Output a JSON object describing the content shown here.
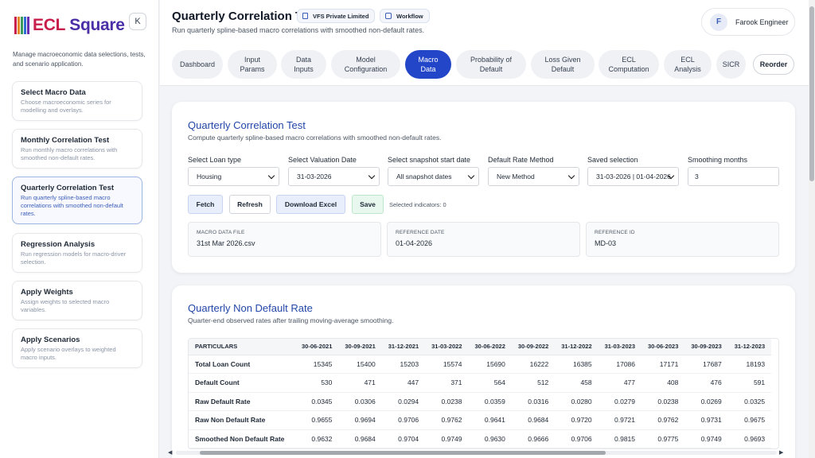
{
  "brand": {
    "ecl": "ECL",
    "square": "Square"
  },
  "sidebar": {
    "collapse_label": "K",
    "description": "Manage macroeconomic data selections, tests, and scenario application.",
    "items": [
      {
        "title": "Select Macro Data",
        "desc": "Choose macroeconomic series for modelling and overlays."
      },
      {
        "title": "Monthly Correlation Test",
        "desc": "Run monthly macro correlations with smoothed non-default rates."
      },
      {
        "title": "Quarterly Correlation Test",
        "desc": "Run quarterly spline-based macro correlations with smoothed non-default rates."
      },
      {
        "title": "Regression Analysis",
        "desc": "Run regression models for macro-driver selection."
      },
      {
        "title": "Apply Weights",
        "desc": "Assign weights to selected macro variables."
      },
      {
        "title": "Apply Scenarios",
        "desc": "Apply scenario overlays to weighted macro inputs."
      }
    ]
  },
  "header": {
    "title": "Quarterly Correlation Test",
    "subtitle": "Run quarterly spline-based macro correlations with smoothed non-default rates.",
    "chips": [
      "VFS Private Limited",
      "Workflow"
    ],
    "user": {
      "initial": "F",
      "name": "Farook Engineer"
    }
  },
  "tabs": [
    {
      "label": "Dashboard"
    },
    {
      "label": "Input Params"
    },
    {
      "label": "Data Inputs"
    },
    {
      "label": "Model Configuration"
    },
    {
      "label": "Macro Data"
    },
    {
      "label": "Probability of Default"
    },
    {
      "label": "Loss Given Default"
    },
    {
      "label": "ECL Computation"
    },
    {
      "label": "ECL Analysis"
    },
    {
      "label": "SICR"
    },
    {
      "label": "Reorder"
    }
  ],
  "correlation_card": {
    "title": "Quarterly Correlation Test",
    "subtitle": "Compute quarterly spline-based macro correlations with smoothed non-default rates.",
    "fields": {
      "loan_type": {
        "label": "Select Loan type",
        "value": "Housing"
      },
      "valuation_date": {
        "label": "Select Valuation Date",
        "value": "31-03-2026"
      },
      "snapshot_start": {
        "label": "Select snapshot start date",
        "value": "All snapshot dates"
      },
      "default_rate": {
        "label": "Default Rate Method",
        "value": "New Method"
      },
      "saved_selection": {
        "label": "Saved selection",
        "value": "31-03-2026 | 01-04-2026"
      },
      "smoothing": {
        "label": "Smoothing months",
        "value": "3"
      }
    },
    "buttons": {
      "fetch": "Fetch",
      "refresh": "Refresh",
      "download": "Download Excel",
      "save": "Save"
    },
    "selected_indicators": "Selected indicators: 0",
    "info": [
      {
        "label": "MACRO DATA FILE",
        "value": "31st Mar 2026.csv"
      },
      {
        "label": "REFERENCE DATE",
        "value": "01-04-2026"
      },
      {
        "label": "REFERENCE ID",
        "value": "MD-03"
      }
    ]
  },
  "nondefault_card": {
    "title": "Quarterly Non Default Rate",
    "subtitle": "Quarter-end observed rates after trailing moving-average smoothing.",
    "columns": [
      "PARTICULARS",
      "30-06-2021",
      "30-09-2021",
      "31-12-2021",
      "31-03-2022",
      "30-06-2022",
      "30-09-2022",
      "31-12-2022",
      "31-03-2023",
      "30-06-2023",
      "30-09-2023",
      "31-12-2023"
    ],
    "rows": [
      {
        "label": "Total Loan Count",
        "values": [
          "15345",
          "15400",
          "15203",
          "15574",
          "15690",
          "16222",
          "16385",
          "17086",
          "17171",
          "17687",
          "18193"
        ]
      },
      {
        "label": "Default Count",
        "values": [
          "530",
          "471",
          "447",
          "371",
          "564",
          "512",
          "458",
          "477",
          "408",
          "476",
          "591"
        ]
      },
      {
        "label": "Raw Default Rate",
        "values": [
          "0.0345",
          "0.0306",
          "0.0294",
          "0.0238",
          "0.0359",
          "0.0316",
          "0.0280",
          "0.0279",
          "0.0238",
          "0.0269",
          "0.0325"
        ]
      },
      {
        "label": "Raw Non Default Rate",
        "values": [
          "0.9655",
          "0.9694",
          "0.9706",
          "0.9762",
          "0.9641",
          "0.9684",
          "0.9720",
          "0.9721",
          "0.9762",
          "0.9731",
          "0.9675"
        ]
      },
      {
        "label": "Smoothed Non Default Rate",
        "values": [
          "0.9632",
          "0.9684",
          "0.9704",
          "0.9749",
          "0.9630",
          "0.9666",
          "0.9706",
          "0.9815",
          "0.9775",
          "0.9749",
          "0.9693"
        ]
      }
    ]
  }
}
